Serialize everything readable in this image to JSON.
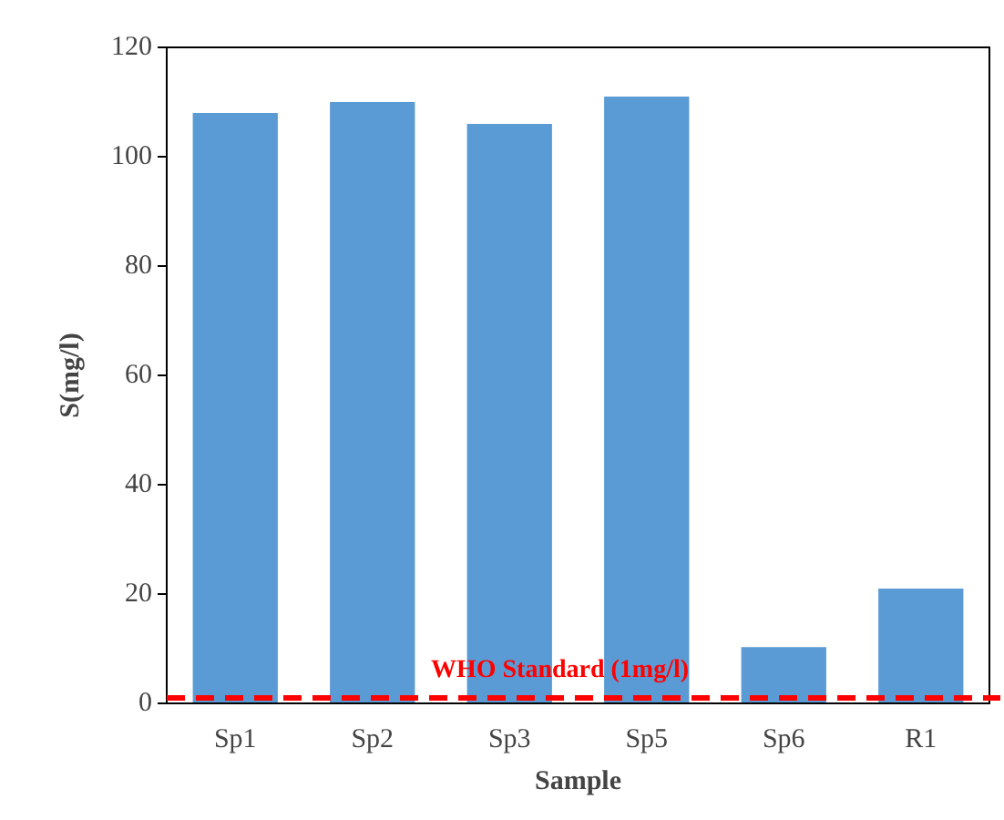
{
  "chart_data": {
    "type": "bar",
    "xlabel": "Sample",
    "ylabel": "S(mg/l)",
    "categories": [
      "Sp1",
      "Sp2",
      "Sp3",
      "Sp5",
      "Sp6",
      "R1"
    ],
    "values": [
      108,
      110,
      106,
      111,
      10.3,
      21
    ],
    "color": "#5b9bd5",
    "ylim": [
      0,
      120
    ],
    "yticks": [
      0,
      20,
      40,
      60,
      80,
      100,
      120
    ],
    "grid": false,
    "legend": false,
    "ref_lines": [
      {
        "axis": "y",
        "value": 1,
        "label": "WHO Standard (1mg/l)",
        "color": "#ff0000",
        "line_style": "dashed"
      }
    ]
  }
}
